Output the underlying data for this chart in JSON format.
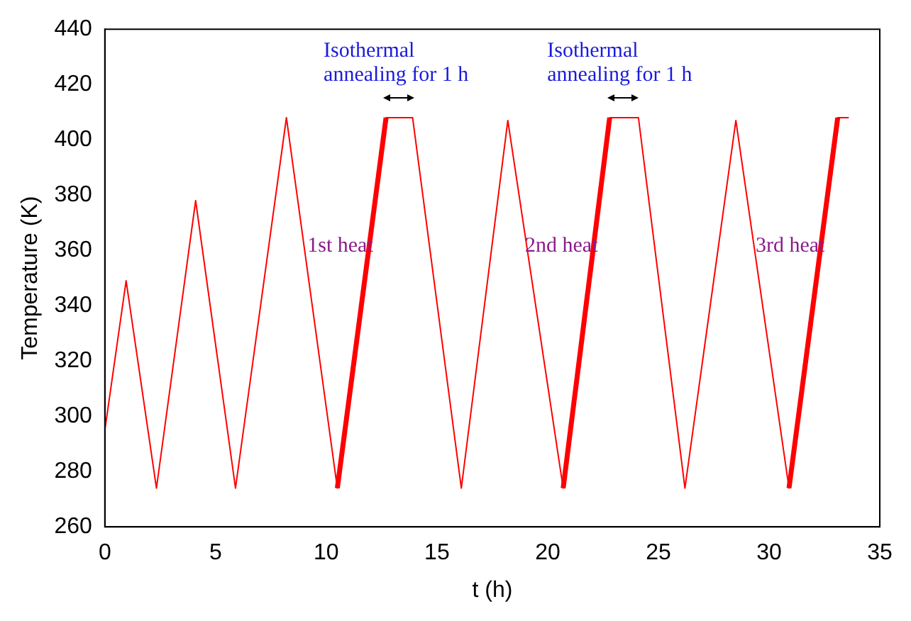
{
  "chart_data": {
    "type": "line",
    "xlabel": "t (h)",
    "ylabel": "Temperature (K)",
    "xlim": [
      0,
      35
    ],
    "xticks": [
      0,
      5,
      10,
      15,
      20,
      25,
      30,
      35
    ],
    "ylim": [
      260,
      440
    ],
    "yticks": [
      260,
      280,
      300,
      320,
      340,
      360,
      380,
      400,
      420,
      440
    ],
    "grid": false,
    "legend": false,
    "marker": "none",
    "line_style": "solid",
    "series": [
      {
        "color": "#ff0000",
        "x": [
          0,
          0.96,
          2.33,
          4.1,
          5.9,
          8.2,
          10.5,
          12.7,
          13.9,
          16.1,
          18.2,
          20.7,
          22.8,
          24.1,
          26.2,
          28.5,
          30.9,
          33.1,
          33.6
        ],
        "values": [
          295,
          349,
          274,
          378,
          274,
          408,
          274,
          408,
          408,
          274,
          407,
          274,
          408,
          408,
          274,
          407,
          274,
          408,
          408
        ]
      },
      {
        "color": "#ff0000",
        "x": [
          10.5,
          12.7
        ],
        "values": [
          274,
          408
        ]
      },
      {
        "color": "#ff0000",
        "x": [
          20.7,
          22.8
        ],
        "values": [
          274,
          408
        ]
      },
      {
        "color": "#ff0000",
        "x": [
          30.9,
          33.1
        ],
        "values": [
          274,
          408
        ]
      }
    ],
    "annotations": [
      "Isothermal annealing for 1 h",
      "Isothermal annealing for 1 h",
      "1st heat",
      "2nd heat",
      "3rd heat"
    ]
  }
}
